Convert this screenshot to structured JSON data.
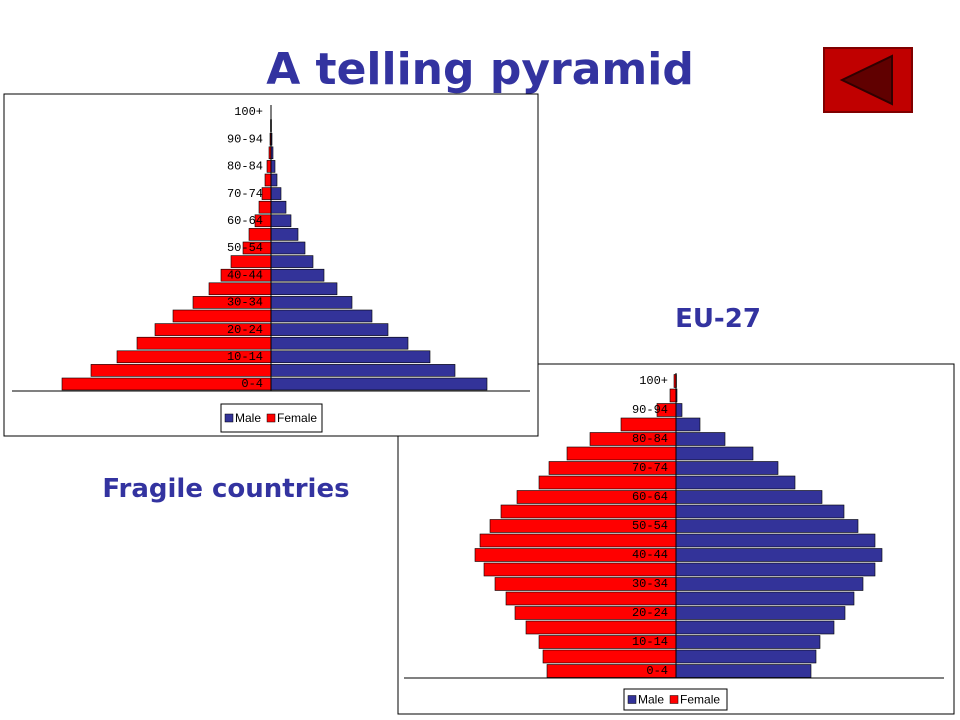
{
  "title": "A telling pyramid",
  "chart_data": [
    {
      "type": "population-pyramid",
      "title": "Fragile countries",
      "categories": [
        "0-4",
        null,
        "10-14",
        null,
        "20-24",
        null,
        "30-34",
        null,
        "40-44",
        null,
        "50-54",
        null,
        "60-64",
        null,
        "70-74",
        null,
        "80-84",
        null,
        "90-94",
        null,
        "100+"
      ],
      "series": [
        {
          "name": "Male",
          "color": "#333399",
          "values": [
            216,
            184,
            159,
            137,
            117,
            101,
            81,
            66,
            53,
            42,
            34,
            27,
            20,
            15,
            10,
            6,
            4,
            2,
            1,
            0.5,
            0.2
          ]
        },
        {
          "name": "Female",
          "color": "#ff0000",
          "values": [
            209,
            180,
            154,
            134,
            116,
            98,
            78,
            62,
            50,
            40,
            28,
            22,
            16,
            12,
            9,
            6,
            4,
            2,
            1,
            0.5,
            0.2
          ]
        }
      ]
    },
    {
      "type": "population-pyramid",
      "title": "EU-27",
      "categories": [
        "0-4",
        null,
        "10-14",
        null,
        "20-24",
        null,
        "30-34",
        null,
        "40-44",
        null,
        "50-54",
        null,
        "60-64",
        null,
        "70-74",
        null,
        "80-84",
        null,
        "90-94",
        null,
        "100+"
      ],
      "series": [
        {
          "name": "Male",
          "color": "#333399",
          "values": [
            135,
            140,
            144,
            158,
            169,
            178,
            187,
            199,
            206,
            199,
            182,
            168,
            146,
            119,
            102,
            77,
            49,
            24,
            6,
            1,
            0.5
          ]
        },
        {
          "name": "Female",
          "color": "#ff0000",
          "values": [
            129,
            133,
            137,
            150,
            161,
            170,
            181,
            192,
            201,
            196,
            186,
            175,
            159,
            137,
            127,
            109,
            86,
            55,
            19,
            6,
            2
          ]
        }
      ]
    }
  ]
}
